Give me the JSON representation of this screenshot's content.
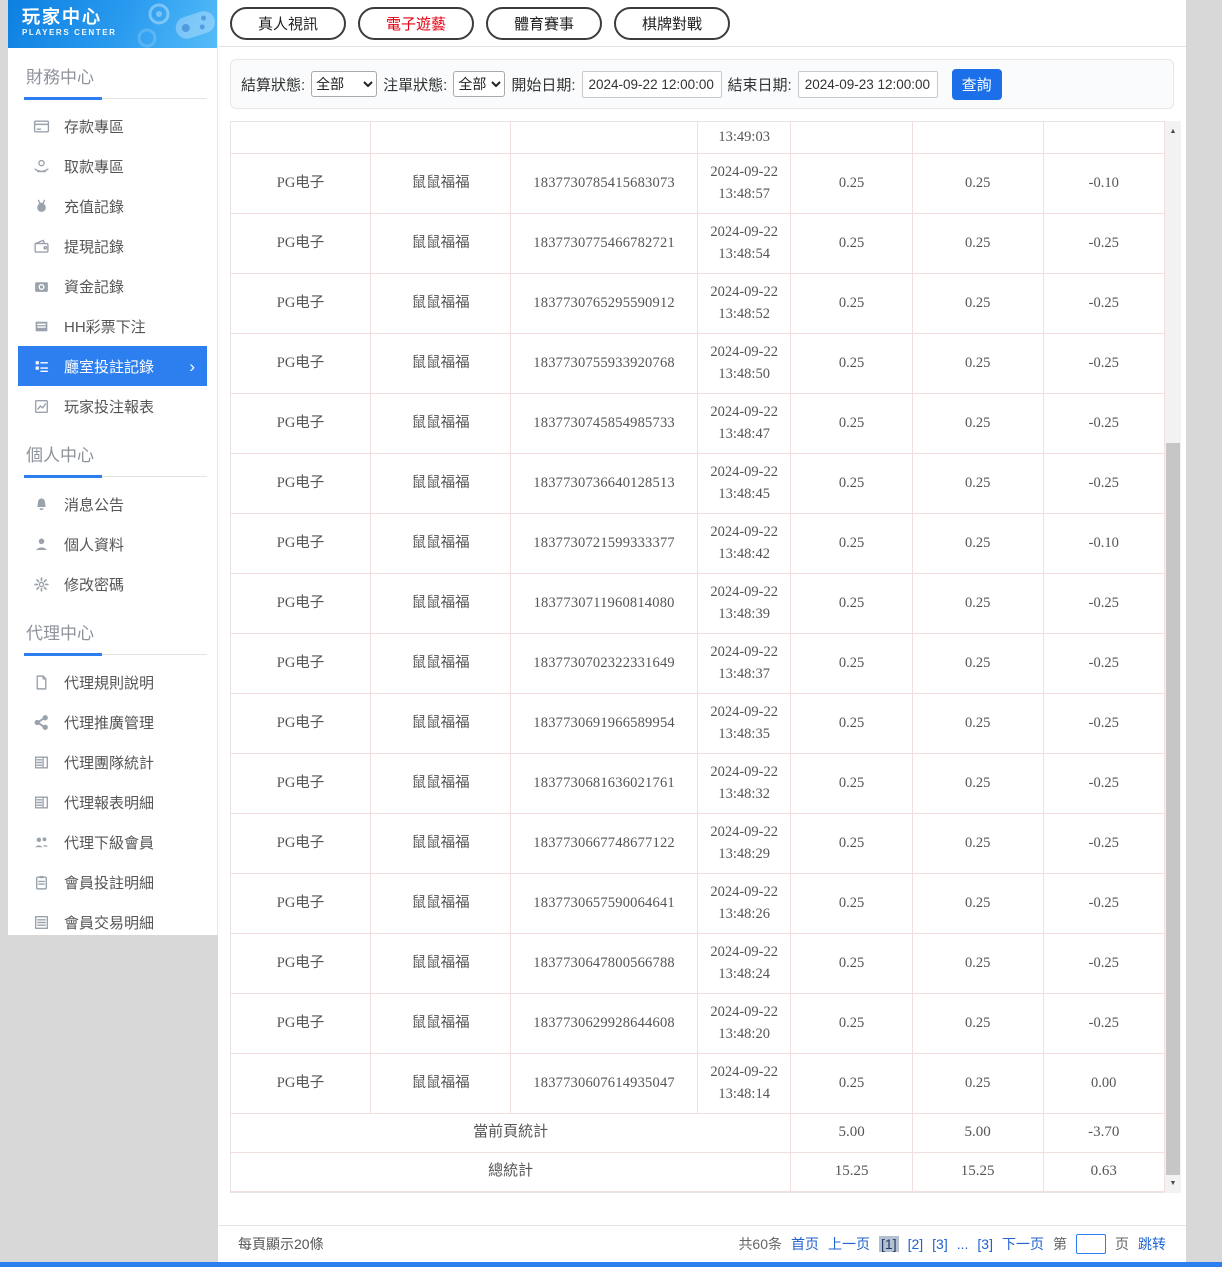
{
  "sidebar": {
    "title": "玩家中心",
    "subtitle": "PLAYERS CENTER",
    "sections": [
      {
        "label": "財務中心",
        "items": [
          {
            "label": "存款專區",
            "icon": "deposit-card-icon"
          },
          {
            "label": "取款專區",
            "icon": "withdraw-hand-icon"
          },
          {
            "label": "充值記錄",
            "icon": "moneybag-icon"
          },
          {
            "label": "提現記錄",
            "icon": "wallet-icon"
          },
          {
            "label": "資金記錄",
            "icon": "funds-icon"
          },
          {
            "label": "HH彩票下注",
            "icon": "lottery-list-icon"
          },
          {
            "label": "廳室投註記錄",
            "icon": "betting-record-icon",
            "active": true,
            "chevron": "›"
          },
          {
            "label": "玩家投注報表",
            "icon": "report-chart-icon"
          }
        ]
      },
      {
        "label": "個人中心",
        "items": [
          {
            "label": "消息公告",
            "icon": "bell-icon"
          },
          {
            "label": "個人資料",
            "icon": "person-icon"
          },
          {
            "label": "修改密碼",
            "icon": "gear-icon"
          }
        ]
      },
      {
        "label": "代理中心",
        "items": [
          {
            "label": "代理規則說明",
            "icon": "document-icon"
          },
          {
            "label": "代理推廣管理",
            "icon": "share-icon"
          },
          {
            "label": "代理團隊統計",
            "icon": "news-icon"
          },
          {
            "label": "代理報表明細",
            "icon": "news-icon"
          },
          {
            "label": "代理下級會員",
            "icon": "people-icon"
          },
          {
            "label": "會員投註明細",
            "icon": "clipboard-icon"
          },
          {
            "label": "會員交易明細",
            "icon": "list-icon"
          }
        ]
      }
    ]
  },
  "tabs": [
    {
      "label": "真人視訊",
      "active": false
    },
    {
      "label": "電子遊藝",
      "active": true
    },
    {
      "label": "體育賽事",
      "active": false
    },
    {
      "label": "棋牌對戰",
      "active": false
    }
  ],
  "filters": {
    "settle_status_label": "結算狀態:",
    "settle_status_value": "全部",
    "order_status_label": "注單狀態:",
    "order_status_value": "全部",
    "start_date_label": "開始日期:",
    "start_date_value": "2024-09-22 12:00:00",
    "end_date_label": "結束日期:",
    "end_date_value": "2024-09-23 12:00:00",
    "search_label": "查詢"
  },
  "table": {
    "partial_row_time": "13:49:03",
    "rows": [
      {
        "platform": "PG电子",
        "player": "鼠鼠福福",
        "bet_id": "1837730785415683073",
        "date": "2024-09-22",
        "time": "13:48:57",
        "bet": "0.25",
        "valid": "0.25",
        "profit": "-0.10"
      },
      {
        "platform": "PG电子",
        "player": "鼠鼠福福",
        "bet_id": "1837730775466782721",
        "date": "2024-09-22",
        "time": "13:48:54",
        "bet": "0.25",
        "valid": "0.25",
        "profit": "-0.25"
      },
      {
        "platform": "PG电子",
        "player": "鼠鼠福福",
        "bet_id": "1837730765295590912",
        "date": "2024-09-22",
        "time": "13:48:52",
        "bet": "0.25",
        "valid": "0.25",
        "profit": "-0.25"
      },
      {
        "platform": "PG电子",
        "player": "鼠鼠福福",
        "bet_id": "1837730755933920768",
        "date": "2024-09-22",
        "time": "13:48:50",
        "bet": "0.25",
        "valid": "0.25",
        "profit": "-0.25"
      },
      {
        "platform": "PG电子",
        "player": "鼠鼠福福",
        "bet_id": "1837730745854985733",
        "date": "2024-09-22",
        "time": "13:48:47",
        "bet": "0.25",
        "valid": "0.25",
        "profit": "-0.25"
      },
      {
        "platform": "PG电子",
        "player": "鼠鼠福福",
        "bet_id": "1837730736640128513",
        "date": "2024-09-22",
        "time": "13:48:45",
        "bet": "0.25",
        "valid": "0.25",
        "profit": "-0.25"
      },
      {
        "platform": "PG电子",
        "player": "鼠鼠福福",
        "bet_id": "1837730721599333377",
        "date": "2024-09-22",
        "time": "13:48:42",
        "bet": "0.25",
        "valid": "0.25",
        "profit": "-0.10"
      },
      {
        "platform": "PG电子",
        "player": "鼠鼠福福",
        "bet_id": "1837730711960814080",
        "date": "2024-09-22",
        "time": "13:48:39",
        "bet": "0.25",
        "valid": "0.25",
        "profit": "-0.25"
      },
      {
        "platform": "PG电子",
        "player": "鼠鼠福福",
        "bet_id": "1837730702322331649",
        "date": "2024-09-22",
        "time": "13:48:37",
        "bet": "0.25",
        "valid": "0.25",
        "profit": "-0.25"
      },
      {
        "platform": "PG电子",
        "player": "鼠鼠福福",
        "bet_id": "1837730691966589954",
        "date": "2024-09-22",
        "time": "13:48:35",
        "bet": "0.25",
        "valid": "0.25",
        "profit": "-0.25"
      },
      {
        "platform": "PG电子",
        "player": "鼠鼠福福",
        "bet_id": "1837730681636021761",
        "date": "2024-09-22",
        "time": "13:48:32",
        "bet": "0.25",
        "valid": "0.25",
        "profit": "-0.25"
      },
      {
        "platform": "PG电子",
        "player": "鼠鼠福福",
        "bet_id": "1837730667748677122",
        "date": "2024-09-22",
        "time": "13:48:29",
        "bet": "0.25",
        "valid": "0.25",
        "profit": "-0.25"
      },
      {
        "platform": "PG电子",
        "player": "鼠鼠福福",
        "bet_id": "1837730657590064641",
        "date": "2024-09-22",
        "time": "13:48:26",
        "bet": "0.25",
        "valid": "0.25",
        "profit": "-0.25"
      },
      {
        "platform": "PG电子",
        "player": "鼠鼠福福",
        "bet_id": "1837730647800566788",
        "date": "2024-09-22",
        "time": "13:48:24",
        "bet": "0.25",
        "valid": "0.25",
        "profit": "-0.25"
      },
      {
        "platform": "PG电子",
        "player": "鼠鼠福福",
        "bet_id": "1837730629928644608",
        "date": "2024-09-22",
        "time": "13:48:20",
        "bet": "0.25",
        "valid": "0.25",
        "profit": "-0.25"
      },
      {
        "platform": "PG电子",
        "player": "鼠鼠福福",
        "bet_id": "1837730607614935047",
        "date": "2024-09-22",
        "time": "13:48:14",
        "bet": "0.25",
        "valid": "0.25",
        "profit": "0.00"
      }
    ],
    "summary": [
      {
        "label": "當前頁統計",
        "bet": "5.00",
        "valid": "5.00",
        "profit": "-3.70"
      },
      {
        "label": "總統計",
        "bet": "15.25",
        "valid": "15.25",
        "profit": "0.63"
      }
    ]
  },
  "footer": {
    "page_size_text": "每頁顯示20條",
    "total_text": "共60条",
    "first_label": "首页",
    "prev_label": "上一页",
    "pages": [
      {
        "label": "[1]",
        "current": true
      },
      {
        "label": "[2]",
        "current": false
      },
      {
        "label": "[3]",
        "current": false
      },
      {
        "label": "...",
        "current": false,
        "static": true
      },
      {
        "label": "[3]",
        "current": false
      }
    ],
    "next_label": "下一页",
    "jump_prefix": "第",
    "jump_suffix": "页",
    "jump_label": "跳转",
    "jump_value": ""
  },
  "colors": {
    "accent_blue": "#2d7ff0",
    "tab_active_red": "#e60012",
    "link_blue": "#2163cf",
    "table_border_pink": "#f3dede",
    "header_gradient_start": "#0d7fe0",
    "header_gradient_end": "#55bcf8"
  }
}
